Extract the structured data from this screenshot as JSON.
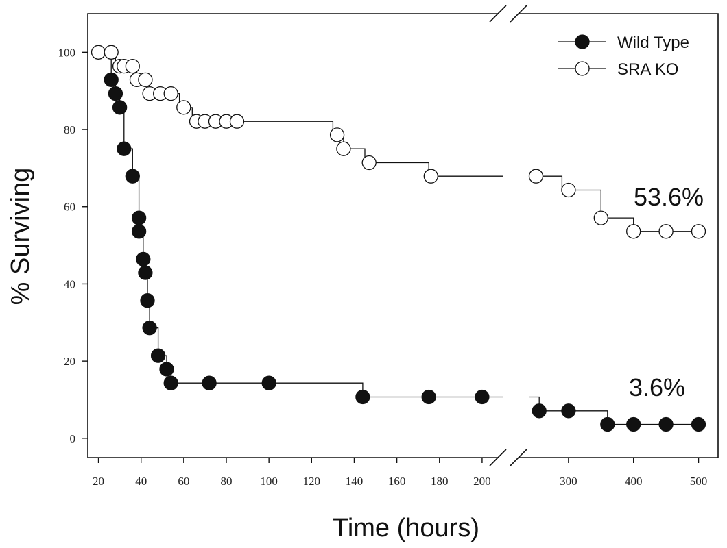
{
  "chart_data": {
    "type": "line",
    "subtype": "kaplan-meier-step",
    "title": "",
    "xlabel": "Time (hours)",
    "ylabel": "% Surviving",
    "x_axis": {
      "broken": true,
      "segment1": {
        "range": [
          15,
          210
        ],
        "ticks": [
          20,
          40,
          60,
          80,
          100,
          120,
          140,
          160,
          180,
          200
        ]
      },
      "segment2": {
        "range": [
          220,
          530
        ],
        "ticks": [
          300,
          400,
          500
        ]
      }
    },
    "y_axis": {
      "range": [
        -5,
        110
      ],
      "ticks": [
        0,
        20,
        40,
        60,
        80,
        100
      ]
    },
    "grid": false,
    "legend_position": "top-right",
    "series": [
      {
        "name": "Wild Type",
        "marker": "filled-circle",
        "points": [
          [
            26,
            92.9
          ],
          [
            28,
            89.3
          ],
          [
            30,
            85.7
          ],
          [
            32,
            75.0
          ],
          [
            36,
            67.9
          ],
          [
            39,
            57.1
          ],
          [
            39,
            53.6
          ],
          [
            41,
            46.4
          ],
          [
            42,
            42.9
          ],
          [
            43,
            35.7
          ],
          [
            44,
            28.6
          ],
          [
            48,
            21.4
          ],
          [
            52,
            17.9
          ],
          [
            54,
            14.3
          ],
          [
            72,
            14.3
          ],
          [
            100,
            14.3
          ],
          [
            144,
            10.7
          ],
          [
            175,
            10.7
          ],
          [
            200,
            10.7
          ],
          [
            255,
            7.1
          ],
          [
            300,
            7.1
          ],
          [
            360,
            3.6
          ],
          [
            400,
            3.6
          ],
          [
            450,
            3.6
          ],
          [
            500,
            3.6
          ]
        ],
        "steps": [
          [
            20,
            100
          ],
          [
            26,
            100
          ],
          [
            26,
            92.9
          ],
          [
            28,
            92.9
          ],
          [
            28,
            89.3
          ],
          [
            30,
            89.3
          ],
          [
            30,
            85.7
          ],
          [
            32,
            85.7
          ],
          [
            32,
            75.0
          ],
          [
            36,
            75.0
          ],
          [
            36,
            67.9
          ],
          [
            39,
            67.9
          ],
          [
            39,
            53.6
          ],
          [
            41,
            53.6
          ],
          [
            41,
            42.9
          ],
          [
            43,
            42.9
          ],
          [
            43,
            35.7
          ],
          [
            44,
            35.7
          ],
          [
            44,
            28.6
          ],
          [
            48,
            28.6
          ],
          [
            48,
            21.4
          ],
          [
            52,
            21.4
          ],
          [
            52,
            17.9
          ],
          [
            54,
            17.9
          ],
          [
            54,
            14.3
          ],
          [
            144,
            14.3
          ],
          [
            144,
            10.7
          ],
          [
            210,
            10.7
          ],
          "gap",
          [
            240,
            10.7
          ],
          [
            255,
            10.7
          ],
          [
            255,
            7.1
          ],
          [
            360,
            7.1
          ],
          [
            360,
            3.6
          ],
          [
            500,
            3.6
          ]
        ],
        "annotation": "3.6%"
      },
      {
        "name": "SRA KO",
        "marker": "open-circle",
        "points": [
          [
            20,
            100
          ],
          [
            26,
            100
          ],
          [
            30,
            96.4
          ],
          [
            32,
            96.4
          ],
          [
            36,
            96.4
          ],
          [
            38,
            92.9
          ],
          [
            42,
            92.9
          ],
          [
            44,
            89.3
          ],
          [
            49,
            89.3
          ],
          [
            54,
            89.3
          ],
          [
            60,
            85.7
          ],
          [
            66,
            82.1
          ],
          [
            70,
            82.1
          ],
          [
            75,
            82.1
          ],
          [
            80,
            82.1
          ],
          [
            85,
            82.1
          ],
          [
            132,
            78.6
          ],
          [
            135,
            75.0
          ],
          [
            147,
            71.4
          ],
          [
            176,
            67.9
          ],
          [
            250,
            67.9
          ],
          [
            300,
            64.3
          ],
          [
            350,
            57.1
          ],
          [
            400,
            53.6
          ],
          [
            450,
            53.6
          ],
          [
            500,
            53.6
          ]
        ],
        "steps": [
          [
            20,
            100
          ],
          [
            28,
            100
          ],
          [
            28,
            96.4
          ],
          [
            38,
            96.4
          ],
          [
            38,
            92.9
          ],
          [
            44,
            92.9
          ],
          [
            44,
            89.3
          ],
          [
            58,
            89.3
          ],
          [
            58,
            85.7
          ],
          [
            64,
            85.7
          ],
          [
            64,
            82.1
          ],
          [
            130,
            82.1
          ],
          [
            130,
            78.6
          ],
          [
            135,
            78.6
          ],
          [
            135,
            75.0
          ],
          [
            145,
            75.0
          ],
          [
            145,
            71.4
          ],
          [
            175,
            71.4
          ],
          [
            175,
            67.9
          ],
          [
            210,
            67.9
          ],
          "gap",
          [
            240,
            67.9
          ],
          [
            290,
            67.9
          ],
          [
            290,
            64.3
          ],
          [
            350,
            64.3
          ],
          [
            350,
            57.1
          ],
          [
            400,
            57.1
          ],
          [
            400,
            53.6
          ],
          [
            500,
            53.6
          ]
        ],
        "annotation": "53.6%"
      }
    ]
  }
}
